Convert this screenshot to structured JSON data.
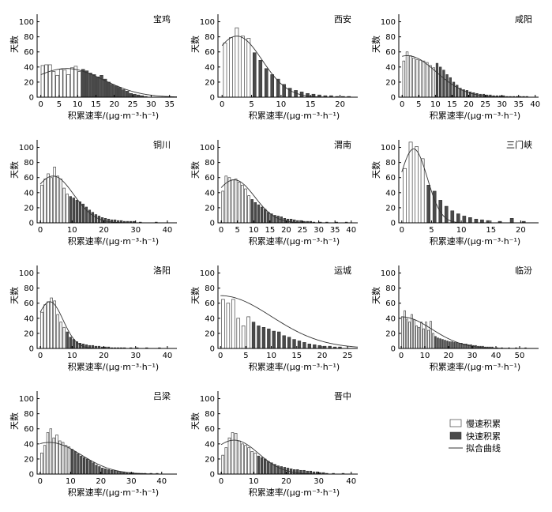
{
  "legend": {
    "slow_label": "慢速积累",
    "fast_label": "快速积累",
    "fit_label": "拟合曲线"
  },
  "chart_data": [
    {
      "type": "bar",
      "title": "宝鸡",
      "xlabel": "积累速率/(μg·m⁻³·h⁻¹)",
      "ylabel": "天数",
      "xlim": [
        -1,
        37
      ],
      "ylim": [
        0,
        110
      ],
      "xticks": [
        0,
        5,
        10,
        15,
        20,
        25,
        30,
        35
      ],
      "yticks": [
        0,
        20,
        40,
        60,
        80,
        100
      ],
      "bar_width": 0.85,
      "threshold": 10.5,
      "bins": [
        0.5,
        1.5,
        2.5,
        3.5,
        4.5,
        5.5,
        6.5,
        7.5,
        8.5,
        9.5,
        10.5,
        11.5,
        12.5,
        13.5,
        14.5,
        15.5,
        16.5,
        17.5,
        18.5,
        19.5,
        20.5,
        21.5,
        22.5,
        23.5,
        24.5,
        25.5,
        26.5,
        27.5,
        28.5
      ],
      "values": [
        42,
        43,
        43,
        34,
        29,
        37,
        36,
        30,
        39,
        41,
        34,
        37,
        35,
        32,
        30,
        27,
        29,
        24,
        20,
        17,
        15,
        13,
        10,
        8,
        5,
        4,
        3,
        2,
        1
      ],
      "fit": {
        "type": "gauss",
        "a": 38,
        "mu": 7,
        "sigma": 10
      }
    },
    {
      "type": "bar",
      "title": "西安",
      "xlabel": "积累速率/(μg·m⁻³·h⁻¹)",
      "ylabel": "天数",
      "xlim": [
        -0.7,
        23
      ],
      "ylim": [
        0,
        110
      ],
      "xticks": [
        0,
        5,
        10,
        15,
        20
      ],
      "yticks": [
        0,
        20,
        40,
        60,
        80,
        100
      ],
      "bar_width": 0.55,
      "threshold": 5.0,
      "bins": [
        0.5,
        1.5,
        2.5,
        3.5,
        4.5,
        5.5,
        6.5,
        7.5,
        8.5,
        9.5,
        10.5,
        11.5,
        12.5,
        13.5,
        14.5,
        15.5,
        16.5,
        17.5,
        18.5,
        19.5,
        20.5,
        21.5
      ],
      "values": [
        72,
        79,
        92,
        81,
        78,
        59,
        49,
        38,
        30,
        24,
        17,
        12,
        9,
        7,
        5,
        4,
        3,
        2,
        2,
        1,
        1,
        1
      ],
      "fit": {
        "type": "gauss",
        "a": 81,
        "mu": 2.5,
        "sigma": 4.3
      }
    },
    {
      "type": "bar",
      "title": "咸阳",
      "xlabel": "积累速率/(μg·m⁻³·h⁻¹)",
      "ylabel": "天数",
      "xlim": [
        -1,
        41
      ],
      "ylim": [
        0,
        110
      ],
      "xticks": [
        0,
        5,
        10,
        15,
        20,
        25,
        30,
        35,
        40
      ],
      "yticks": [
        0,
        20,
        40,
        60,
        80,
        100
      ],
      "bar_width": 0.65,
      "threshold": 9.5,
      "bins": [
        0.5,
        1.5,
        2.5,
        3.5,
        4.5,
        5.5,
        6.5,
        7.5,
        8.5,
        9.5,
        10.5,
        11.5,
        12.5,
        13.5,
        14.5,
        15.5,
        16.5,
        17.5,
        18.5,
        19.5,
        20.5,
        21.5,
        22.5,
        23.5,
        24.5,
        25.5,
        26.5,
        27.5,
        28.5,
        29.5,
        30.5,
        31.5,
        32.5,
        33.5,
        34.5,
        35.5,
        36.5,
        37.5
      ],
      "values": [
        48,
        60,
        55,
        52,
        50,
        49,
        48,
        46,
        42,
        39,
        45,
        40,
        36,
        30,
        26,
        20,
        16,
        12,
        10,
        9,
        7,
        6,
        5,
        4,
        4,
        3,
        3,
        2,
        2,
        2,
        2,
        1,
        1,
        1,
        1,
        1,
        1,
        1
      ],
      "fit": {
        "type": "gauss",
        "a": 55,
        "mu": 1.5,
        "sigma": 8.8
      }
    },
    {
      "type": "bar",
      "title": "铜川",
      "xlabel": "积累速率/(μg·m⁻³·h⁻¹)",
      "ylabel": "天数",
      "xlim": [
        -1,
        43
      ],
      "ylim": [
        0,
        110
      ],
      "xticks": [
        0,
        10,
        20,
        30,
        40
      ],
      "yticks": [
        0,
        20,
        40,
        60,
        80,
        100
      ],
      "bar_width": 0.7,
      "threshold": 8.5,
      "bins": [
        0.5,
        1.5,
        2.5,
        3.5,
        4.5,
        5.5,
        6.5,
        7.5,
        8.5,
        9.5,
        10.5,
        11.5,
        12.5,
        13.5,
        14.5,
        15.5,
        16.5,
        17.5,
        18.5,
        19.5,
        20.5,
        21.5,
        22.5,
        23.5,
        24.5,
        25.5,
        26.5,
        27.5,
        28.5,
        29.5,
        31.5,
        36.5
      ],
      "values": [
        50,
        58,
        65,
        60,
        74,
        62,
        58,
        46,
        38,
        35,
        33,
        30,
        28,
        25,
        21,
        17,
        14,
        11,
        9,
        7,
        6,
        5,
        4,
        4,
        3,
        3,
        2,
        2,
        2,
        2,
        1,
        1
      ],
      "fit": {
        "type": "gauss",
        "a": 62,
        "mu": 4,
        "sigma": 6.5
      }
    },
    {
      "type": "bar",
      "title": "渭南",
      "xlabel": "积累速率/(μg·m⁻³·h⁻¹)",
      "ylabel": "天数",
      "xlim": [
        -1,
        42
      ],
      "ylim": [
        0,
        110
      ],
      "xticks": [
        0,
        5,
        10,
        15,
        20,
        25,
        30,
        35,
        40
      ],
      "yticks": [
        0,
        20,
        40,
        60,
        80,
        100
      ],
      "bar_width": 0.7,
      "threshold": 8.5,
      "bins": [
        0.5,
        1.5,
        2.5,
        3.5,
        4.5,
        5.5,
        6.5,
        7.5,
        8.5,
        9.5,
        10.5,
        11.5,
        12.5,
        13.5,
        14.5,
        15.5,
        16.5,
        17.5,
        18.5,
        19.5,
        20.5,
        21.5,
        22.5,
        23.5,
        24.5,
        25.5,
        26.5,
        27.5,
        28.5,
        30.5,
        32.5,
        35.5,
        38.5
      ],
      "values": [
        42,
        62,
        60,
        57,
        58,
        54,
        50,
        45,
        36,
        31,
        27,
        24,
        21,
        18,
        14,
        12,
        10,
        9,
        8,
        6,
        5,
        5,
        4,
        3,
        3,
        2,
        2,
        2,
        1,
        1,
        1,
        1,
        1
      ],
      "fit": {
        "type": "gauss",
        "a": 57,
        "mu": 4,
        "sigma": 6.3
      }
    },
    {
      "type": "bar",
      "title": "三门峡",
      "xlabel": "积累速率/(μg·m⁻³·h⁻¹)",
      "ylabel": "天数",
      "xlim": [
        -0.5,
        23
      ],
      "ylim": [
        0,
        110
      ],
      "xticks": [
        0,
        5,
        10,
        15,
        20
      ],
      "yticks": [
        0,
        20,
        40,
        60,
        80,
        100
      ],
      "bar_width": 0.55,
      "threshold": 4.0,
      "bins": [
        0.5,
        1.5,
        2.5,
        3.5,
        4.5,
        5.5,
        6.5,
        7.5,
        8.5,
        9.5,
        10.5,
        11.5,
        12.5,
        13.5,
        14.5,
        16.5,
        18.5,
        20.5
      ],
      "values": [
        72,
        107,
        101,
        85,
        50,
        42,
        30,
        22,
        16,
        12,
        9,
        7,
        5,
        4,
        3,
        2,
        6,
        2
      ],
      "fit": {
        "type": "gauss",
        "a": 98,
        "mu": 2,
        "sigma": 2.3
      }
    },
    {
      "type": "bar",
      "title": "洛阳",
      "xlabel": "积累速率/(μg·m⁻³·h⁻¹)",
      "ylabel": "天数",
      "xlim": [
        -1,
        43
      ],
      "ylim": [
        0,
        110
      ],
      "xticks": [
        0,
        10,
        20,
        30,
        40
      ],
      "yticks": [
        0,
        20,
        40,
        60,
        80,
        100
      ],
      "bar_width": 0.7,
      "threshold": 7.5,
      "bins": [
        0.5,
        1.5,
        2.5,
        3.5,
        4.5,
        5.5,
        6.5,
        7.5,
        8.5,
        9.5,
        10.5,
        11.5,
        12.5,
        13.5,
        14.5,
        15.5,
        16.5,
        17.5,
        18.5,
        19.5,
        20.5,
        21.5,
        22.5,
        23.5,
        24.5,
        25.5,
        26.5,
        28.5,
        30.5,
        33.5,
        37.5
      ],
      "values": [
        48,
        58,
        62,
        67,
        63,
        45,
        35,
        28,
        22,
        15,
        12,
        9,
        7,
        6,
        5,
        4,
        4,
        3,
        3,
        2,
        2,
        2,
        1,
        1,
        1,
        1,
        1,
        1,
        1,
        1,
        1
      ],
      "fit": {
        "type": "gauss",
        "a": 62,
        "mu": 3,
        "sigma": 4.2
      }
    },
    {
      "type": "bar",
      "title": "运城",
      "xlabel": "积累速率/(μg·m⁻³·h⁻¹)",
      "ylabel": "天数",
      "xlim": [
        -0.5,
        27
      ],
      "ylim": [
        0,
        110
      ],
      "xticks": [
        0,
        5,
        10,
        15,
        20,
        25
      ],
      "yticks": [
        0,
        20,
        40,
        60,
        80,
        100
      ],
      "bar_width": 0.6,
      "threshold": 6.0,
      "bins": [
        0.5,
        1.5,
        2.5,
        3.5,
        4.5,
        5.5,
        6.5,
        7.5,
        8.5,
        9.5,
        10.5,
        11.5,
        12.5,
        13.5,
        14.5,
        15.5,
        16.5,
        17.5,
        18.5,
        19.5,
        20.5,
        21.5,
        22.5,
        23.5
      ],
      "values": [
        65,
        60,
        65,
        40,
        30,
        42,
        35,
        30,
        28,
        26,
        23,
        22,
        17,
        15,
        12,
        10,
        8,
        6,
        5,
        4,
        3,
        3,
        2,
        2
      ],
      "fit": {
        "type": "gauss",
        "a": 70,
        "mu": 0,
        "sigma": 10
      }
    },
    {
      "type": "bar",
      "title": "临汾",
      "xlabel": "积累速率/(μg·m⁻³·h⁻¹)",
      "ylabel": "天数",
      "xlim": [
        -1,
        58
      ],
      "ylim": [
        0,
        110
      ],
      "xticks": [
        0,
        10,
        20,
        30,
        40,
        50
      ],
      "yticks": [
        0,
        20,
        40,
        60,
        80,
        100
      ],
      "bar_width": 0.65,
      "threshold": 13.5,
      "bins": [
        0.5,
        1.5,
        2.5,
        3.5,
        4.5,
        5.5,
        6.5,
        7.5,
        8.5,
        9.5,
        10.5,
        11.5,
        12.5,
        13.5,
        14.5,
        15.5,
        16.5,
        17.5,
        18.5,
        19.5,
        20.5,
        21.5,
        22.5,
        23.5,
        24.5,
        25.5,
        26.5,
        27.5,
        28.5,
        29.5,
        30.5,
        31.5,
        32.5,
        33.5,
        34.5,
        35.5,
        36.5,
        37.5,
        38.5,
        40.5,
        42.5,
        45.5,
        48.5,
        52.5
      ],
      "values": [
        42,
        50,
        39,
        35,
        45,
        38,
        30,
        28,
        35,
        26,
        35,
        24,
        36,
        20,
        16,
        14,
        13,
        12,
        11,
        10,
        9,
        9,
        8,
        8,
        7,
        7,
        6,
        6,
        5,
        5,
        4,
        4,
        3,
        3,
        3,
        2,
        2,
        2,
        2,
        1,
        1,
        1,
        1,
        1
      ],
      "fit": {
        "type": "gauss",
        "a": 42,
        "mu": 0,
        "sigma": 13
      }
    },
    {
      "type": "bar",
      "title": "吕梁",
      "xlabel": "积累速率/(μg·m⁻³·h⁻¹)",
      "ylabel": "天数",
      "xlim": [
        -1,
        45
      ],
      "ylim": [
        0,
        110
      ],
      "xticks": [
        0,
        10,
        20,
        30,
        40
      ],
      "yticks": [
        0,
        20,
        40,
        60,
        80,
        100
      ],
      "bar_width": 0.7,
      "threshold": 9.5,
      "bins": [
        0.5,
        1.5,
        2.5,
        3.5,
        4.5,
        5.5,
        6.5,
        7.5,
        8.5,
        9.5,
        10.5,
        11.5,
        12.5,
        13.5,
        14.5,
        15.5,
        16.5,
        17.5,
        18.5,
        19.5,
        20.5,
        21.5,
        22.5,
        23.5,
        24.5,
        25.5,
        26.5,
        27.5,
        28.5,
        29.5,
        30.5,
        31.5,
        32.5,
        33.5,
        34.5,
        36.5,
        38.5
      ],
      "values": [
        28,
        38,
        55,
        60,
        48,
        52,
        44,
        42,
        38,
        36,
        33,
        30,
        27,
        24,
        22,
        20,
        18,
        15,
        12,
        10,
        8,
        7,
        6,
        5,
        5,
        4,
        3,
        3,
        2,
        2,
        2,
        1,
        1,
        1,
        1,
        1,
        1
      ],
      "fit": {
        "type": "gauss",
        "a": 42,
        "mu": 3,
        "sigma": 10.5
      }
    },
    {
      "type": "bar",
      "title": "晋中",
      "xlabel": "积累速率/(μg·m⁻³·h⁻¹)",
      "ylabel": "天数",
      "xlim": [
        -1,
        42
      ],
      "ylim": [
        0,
        110
      ],
      "xticks": [
        0,
        10,
        20,
        30,
        40
      ],
      "yticks": [
        0,
        20,
        40,
        60,
        80,
        100
      ],
      "bar_width": 0.7,
      "threshold": 10.5,
      "bins": [
        0.5,
        1.5,
        2.5,
        3.5,
        4.5,
        5.5,
        6.5,
        7.5,
        8.5,
        9.5,
        10.5,
        11.5,
        12.5,
        13.5,
        14.5,
        15.5,
        16.5,
        17.5,
        18.5,
        19.5,
        20.5,
        21.5,
        22.5,
        23.5,
        24.5,
        25.5,
        26.5,
        27.5,
        28.5,
        29.5,
        30.5,
        31.5,
        32.5,
        34.5,
        37.5
      ],
      "values": [
        25,
        35,
        48,
        55,
        54,
        44,
        40,
        38,
        35,
        30,
        28,
        24,
        22,
        20,
        17,
        15,
        13,
        11,
        10,
        9,
        8,
        7,
        6,
        6,
        5,
        5,
        4,
        4,
        3,
        3,
        2,
        2,
        1,
        1,
        1
      ],
      "fit": {
        "type": "gauss",
        "a": 45,
        "mu": 4,
        "sigma": 7.5
      }
    }
  ]
}
